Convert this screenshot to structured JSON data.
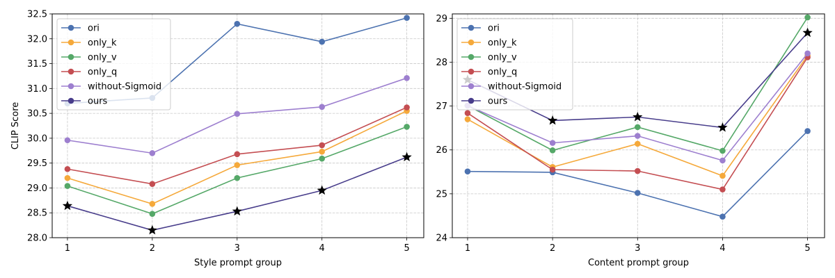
{
  "chart_data": [
    {
      "type": "line",
      "title": "",
      "xlabel": "Style prompt group",
      "ylabel": "CLIP Score",
      "x": [
        1,
        2,
        3,
        4,
        5
      ],
      "xticks": [
        "1",
        "2",
        "3",
        "4",
        "5"
      ],
      "ylim": [
        28.0,
        32.5
      ],
      "yticks": [
        "28.0",
        "28.5",
        "29.0",
        "29.5",
        "30.0",
        "30.5",
        "31.0",
        "31.5",
        "32.0",
        "32.5"
      ],
      "grid": true,
      "legend": "upper-left",
      "series": [
        {
          "name": "ori",
          "color": "#4c72b0",
          "marker": "circle",
          "values": [
            30.7,
            30.81,
            32.3,
            31.94,
            32.42
          ]
        },
        {
          "name": "only_k",
          "color": "#f5a93b",
          "marker": "circle",
          "values": [
            29.2,
            28.68,
            29.46,
            29.73,
            30.55
          ]
        },
        {
          "name": "only_v",
          "color": "#55a868",
          "marker": "circle",
          "values": [
            29.04,
            28.48,
            29.2,
            29.59,
            30.23
          ]
        },
        {
          "name": "only_q",
          "color": "#c44e52",
          "marker": "circle",
          "values": [
            29.38,
            29.08,
            29.68,
            29.86,
            30.62
          ]
        },
        {
          "name": "without-Sigmoid",
          "color": "#9d7fcf",
          "marker": "circle",
          "values": [
            29.96,
            29.7,
            30.49,
            30.63,
            31.21
          ]
        },
        {
          "name": "ours",
          "color": "#483d8b",
          "marker": "star",
          "values": [
            28.64,
            28.15,
            28.53,
            28.95,
            29.62
          ]
        }
      ]
    },
    {
      "type": "line",
      "title": "",
      "xlabel": "Content prompt group",
      "ylabel": "",
      "x": [
        1,
        2,
        3,
        4,
        5
      ],
      "xticks": [
        "1",
        "2",
        "3",
        "4",
        "5"
      ],
      "ylim": [
        24,
        29.1
      ],
      "yticks": [
        "24",
        "25",
        "26",
        "27",
        "28",
        "29"
      ],
      "grid": true,
      "legend": "upper-left",
      "series": [
        {
          "name": "ori",
          "color": "#4c72b0",
          "marker": "circle",
          "values": [
            25.51,
            25.49,
            25.02,
            24.48,
            26.43
          ]
        },
        {
          "name": "only_k",
          "color": "#f5a93b",
          "marker": "circle",
          "values": [
            26.7,
            25.61,
            26.14,
            25.41,
            28.15
          ]
        },
        {
          "name": "only_v",
          "color": "#55a868",
          "marker": "circle",
          "values": [
            27.01,
            25.99,
            26.52,
            25.98,
            29.02
          ]
        },
        {
          "name": "only_q",
          "color": "#c44e52",
          "marker": "circle",
          "values": [
            26.84,
            25.55,
            25.52,
            25.1,
            28.11
          ]
        },
        {
          "name": "without-Sigmoid",
          "color": "#9d7fcf",
          "marker": "circle",
          "values": [
            27.01,
            26.16,
            26.32,
            25.76,
            28.2
          ]
        },
        {
          "name": "ours",
          "color": "#483d8b",
          "marker": "star",
          "values": [
            27.6,
            26.67,
            26.75,
            26.51,
            28.67
          ]
        }
      ]
    }
  ]
}
